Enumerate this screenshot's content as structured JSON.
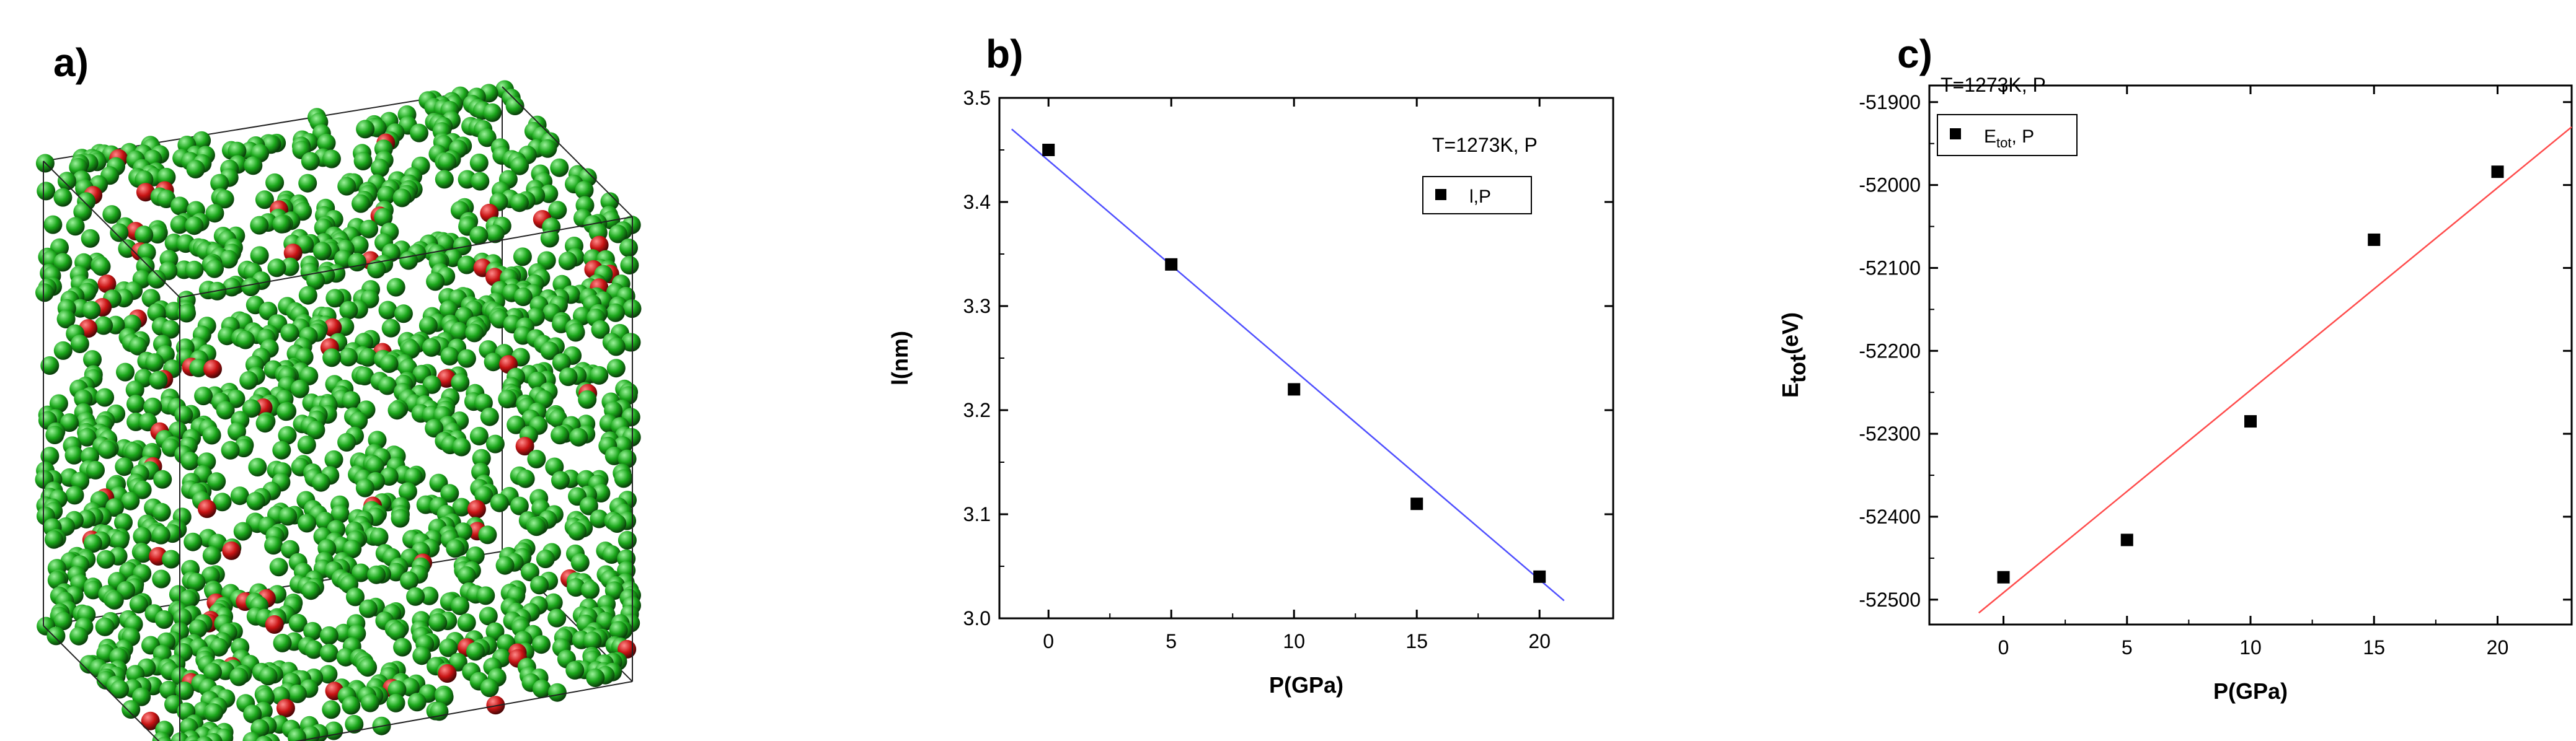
{
  "panel_a": {
    "label": "a)",
    "atom_colors": {
      "majority": "#1aa71a",
      "minority": "#c81414"
    }
  },
  "chart_data": [
    {
      "id": "b",
      "type": "scatter",
      "panel_label": "b)",
      "annotation": "T=1273K, P",
      "legend": "l,P",
      "xlabel": "P(GPa)",
      "ylabel": "l(nm)",
      "xlim": [
        -2,
        23
      ],
      "ylim": [
        3.0,
        3.5
      ],
      "xticks": [
        0,
        5,
        10,
        15,
        20
      ],
      "yticks": [
        3.0,
        3.1,
        3.2,
        3.3,
        3.4,
        3.5
      ],
      "ytick_labels": [
        "3.0",
        "3.1",
        "3.2",
        "3.3",
        "3.4",
        "3.5"
      ],
      "x": [
        0,
        5,
        10,
        15,
        20
      ],
      "y": [
        3.45,
        3.34,
        3.22,
        3.11,
        3.04
      ],
      "fit": {
        "x": [
          -1.5,
          21
        ],
        "y": [
          3.47,
          3.017
        ],
        "color": "#4f4fff"
      },
      "marker_color": "#000000"
    },
    {
      "id": "c",
      "type": "scatter",
      "panel_label": "c)",
      "annotation": "T=1273K, P",
      "legend_main": "E",
      "legend_sub": "tot",
      "legend_tail": ", P",
      "xlabel": "P(GPa)",
      "ylabel_main": "E",
      "ylabel_sub": "tot",
      "ylabel_tail": "(eV)",
      "xlim": [
        -3,
        23
      ],
      "ylim": [
        -52530,
        -51880
      ],
      "xticks": [
        0,
        5,
        10,
        15,
        20
      ],
      "yticks": [
        -52500,
        -52400,
        -52300,
        -52200,
        -52100,
        -52000,
        -51900
      ],
      "ytick_labels": [
        "-52500",
        "-52400",
        "-52300",
        "-52200",
        "-52100",
        "-52000",
        "-51900"
      ],
      "x": [
        0,
        5,
        10,
        15,
        20
      ],
      "y": [
        -52473,
        -52428,
        -52285,
        -52066,
        -51984
      ],
      "fit": {
        "x": [
          -1,
          23
        ],
        "y": [
          -52516,
          -51930
        ],
        "color": "#ff4b4b"
      },
      "marker_color": "#000000"
    }
  ]
}
